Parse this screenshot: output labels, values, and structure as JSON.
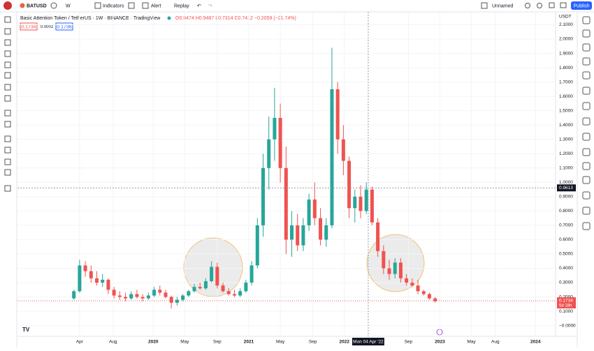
{
  "toolbar": {
    "symbol": "BATUSD",
    "interval": "W",
    "indicators": "Indicators",
    "alert": "Alert",
    "replay": "Replay",
    "layout_name": "Unnamed",
    "publish": "Publish"
  },
  "legend": {
    "title": "Basic Attention Token / TetherUS · 1W · BINANCE · TradingView",
    "ohlc": "O0.9474 H0.9487 L0.7314 C0.7412 −0.2059 (−21.74%)",
    "bid": "0.1734",
    "spread": "0.0002",
    "ask": "0.1736"
  },
  "chart_data": {
    "type": "candlestick",
    "currency": "USDT",
    "up_color": "#26a69a",
    "down_color": "#ef5350",
    "x": [
      2019.17,
      2019.23,
      2019.29,
      2019.35,
      2019.41,
      2019.47,
      2019.53,
      2019.59,
      2019.65,
      2019.71,
      2019.77,
      2019.83,
      2019.89,
      2019.95,
      2020.01,
      2020.07,
      2020.13,
      2020.19,
      2020.25,
      2020.31,
      2020.37,
      2020.43,
      2020.49,
      2020.55,
      2020.61,
      2020.67,
      2020.73,
      2020.79,
      2020.85,
      2020.91,
      2020.97,
      2021.03,
      2021.09,
      2021.15,
      2021.21,
      2021.27,
      2021.33,
      2021.39,
      2021.45,
      2021.51,
      2021.57,
      2021.63,
      2021.69,
      2021.75,
      2021.81,
      2021.87,
      2021.93,
      2021.99,
      2022.05,
      2022.11,
      2022.17,
      2022.23,
      2022.29,
      2022.35,
      2022.41,
      2022.47,
      2022.53,
      2022.59,
      2022.65,
      2022.71,
      2022.77,
      2022.83,
      2022.89,
      2022.95
    ],
    "candles": [
      [
        0.19,
        0.25,
        0.18,
        0.24
      ],
      [
        0.24,
        0.46,
        0.23,
        0.42
      ],
      [
        0.42,
        0.45,
        0.34,
        0.38
      ],
      [
        0.38,
        0.42,
        0.3,
        0.33
      ],
      [
        0.33,
        0.38,
        0.28,
        0.3
      ],
      [
        0.3,
        0.36,
        0.27,
        0.32
      ],
      [
        0.32,
        0.33,
        0.22,
        0.25
      ],
      [
        0.25,
        0.27,
        0.19,
        0.21
      ],
      [
        0.21,
        0.24,
        0.18,
        0.2
      ],
      [
        0.2,
        0.23,
        0.17,
        0.19
      ],
      [
        0.19,
        0.24,
        0.18,
        0.22
      ],
      [
        0.22,
        0.25,
        0.19,
        0.2
      ],
      [
        0.2,
        0.22,
        0.17,
        0.19
      ],
      [
        0.19,
        0.23,
        0.18,
        0.21
      ],
      [
        0.21,
        0.27,
        0.2,
        0.25
      ],
      [
        0.25,
        0.28,
        0.21,
        0.23
      ],
      [
        0.23,
        0.25,
        0.19,
        0.2
      ],
      [
        0.2,
        0.21,
        0.12,
        0.16
      ],
      [
        0.16,
        0.2,
        0.14,
        0.18
      ],
      [
        0.18,
        0.22,
        0.17,
        0.21
      ],
      [
        0.21,
        0.25,
        0.2,
        0.24
      ],
      [
        0.24,
        0.29,
        0.23,
        0.27
      ],
      [
        0.27,
        0.3,
        0.25,
        0.26
      ],
      [
        0.26,
        0.33,
        0.25,
        0.31
      ],
      [
        0.31,
        0.45,
        0.3,
        0.41
      ],
      [
        0.41,
        0.44,
        0.26,
        0.28
      ],
      [
        0.28,
        0.3,
        0.23,
        0.24
      ],
      [
        0.24,
        0.26,
        0.21,
        0.22
      ],
      [
        0.22,
        0.25,
        0.2,
        0.21
      ],
      [
        0.21,
        0.26,
        0.2,
        0.24
      ],
      [
        0.24,
        0.32,
        0.23,
        0.3
      ],
      [
        0.3,
        0.45,
        0.28,
        0.42
      ],
      [
        0.42,
        0.75,
        0.4,
        0.7
      ],
      [
        0.7,
        1.2,
        0.62,
        1.1
      ],
      [
        1.1,
        1.46,
        0.95,
        1.3
      ],
      [
        1.3,
        1.66,
        1.15,
        1.45
      ],
      [
        1.45,
        1.55,
        1.0,
        1.1
      ],
      [
        1.1,
        1.25,
        0.5,
        0.6
      ],
      [
        0.6,
        0.8,
        0.48,
        0.7
      ],
      [
        0.7,
        0.78,
        0.52,
        0.56
      ],
      [
        0.56,
        0.75,
        0.52,
        0.7
      ],
      [
        0.7,
        0.92,
        0.66,
        0.88
      ],
      [
        0.88,
        1.0,
        0.7,
        0.75
      ],
      [
        0.75,
        0.82,
        0.56,
        0.6
      ],
      [
        0.6,
        0.75,
        0.55,
        0.7
      ],
      [
        0.7,
        1.94,
        0.68,
        1.65
      ],
      [
        1.65,
        1.7,
        1.2,
        1.3
      ],
      [
        1.3,
        1.4,
        1.05,
        1.15
      ],
      [
        1.15,
        1.18,
        0.75,
        0.82
      ],
      [
        0.82,
        0.95,
        0.72,
        0.9
      ],
      [
        0.9,
        0.98,
        0.75,
        0.8
      ],
      [
        0.8,
        1.0,
        0.78,
        0.95
      ],
      [
        0.95,
        0.97,
        0.7,
        0.72
      ],
      [
        0.72,
        0.75,
        0.48,
        0.52
      ],
      [
        0.52,
        0.56,
        0.36,
        0.4
      ],
      [
        0.4,
        0.46,
        0.32,
        0.36
      ],
      [
        0.36,
        0.47,
        0.33,
        0.44
      ],
      [
        0.44,
        0.47,
        0.3,
        0.33
      ],
      [
        0.33,
        0.36,
        0.28,
        0.3
      ],
      [
        0.3,
        0.33,
        0.27,
        0.28
      ],
      [
        0.28,
        0.32,
        0.22,
        0.24
      ],
      [
        0.24,
        0.25,
        0.21,
        0.22
      ],
      [
        0.22,
        0.23,
        0.18,
        0.19
      ],
      [
        0.19,
        0.2,
        0.16,
        0.17
      ]
    ],
    "xlim": [
      2018.58,
      2024.21
    ],
    "xticks": [
      {
        "value": 2019.23,
        "label": "Apr"
      },
      {
        "value": 2019.58,
        "label": "Aug"
      },
      2020,
      {
        "value": 2020.33,
        "label": "May"
      },
      {
        "value": 2020.67,
        "label": "Sep"
      },
      2021,
      {
        "value": 2021.33,
        "label": "May"
      },
      {
        "value": 2021.67,
        "label": "Sep"
      },
      2022,
      {
        "value": 2022.67,
        "label": "Sep"
      },
      2023,
      {
        "value": 2023.33,
        "label": "May"
      },
      {
        "value": 2023.58,
        "label": "Aug"
      },
      2024
    ],
    "ylim": [
      -0.075,
      2.19
    ],
    "yticks": [
      {
        "value": 2.1,
        "label": "2.1000"
      },
      {
        "value": 2.0,
        "label": "2.0000"
      },
      {
        "value": 1.9,
        "label": "1.9000"
      },
      {
        "value": 1.8,
        "label": "1.8000"
      },
      {
        "value": 1.7,
        "label": "1.7000"
      },
      {
        "value": 1.6,
        "label": "1.6000"
      },
      {
        "value": 1.5,
        "label": "1.5000"
      },
      {
        "value": 1.4,
        "label": "1.4000"
      },
      {
        "value": 1.3,
        "label": "1.3000"
      },
      {
        "value": 1.2,
        "label": "1.2000"
      },
      {
        "value": 1.1,
        "label": "1.1000"
      },
      {
        "value": 1.0,
        "label": "1.0000"
      },
      {
        "value": 0.9,
        "label": "0.9000"
      },
      {
        "value": 0.8,
        "label": "0.8000"
      },
      {
        "value": 0.7,
        "label": "0.7000"
      },
      {
        "value": 0.6,
        "label": "0.6000"
      },
      {
        "value": 0.5,
        "label": "0.5000"
      },
      {
        "value": 0.4,
        "label": "0.4000"
      },
      {
        "value": 0.3,
        "label": "0.3000"
      },
      {
        "value": 0.2,
        "label": "0.2000"
      },
      {
        "value": 0.1,
        "label": "0.1000"
      },
      {
        "value": 0,
        "label": "−0.0000"
      }
    ],
    "last_price": 0.1734,
    "countdown": "5d 18h",
    "crosshair": {
      "x": 2022.25,
      "x_label": "Mon 04 Apr '22",
      "y": 0.9613
    }
  }
}
